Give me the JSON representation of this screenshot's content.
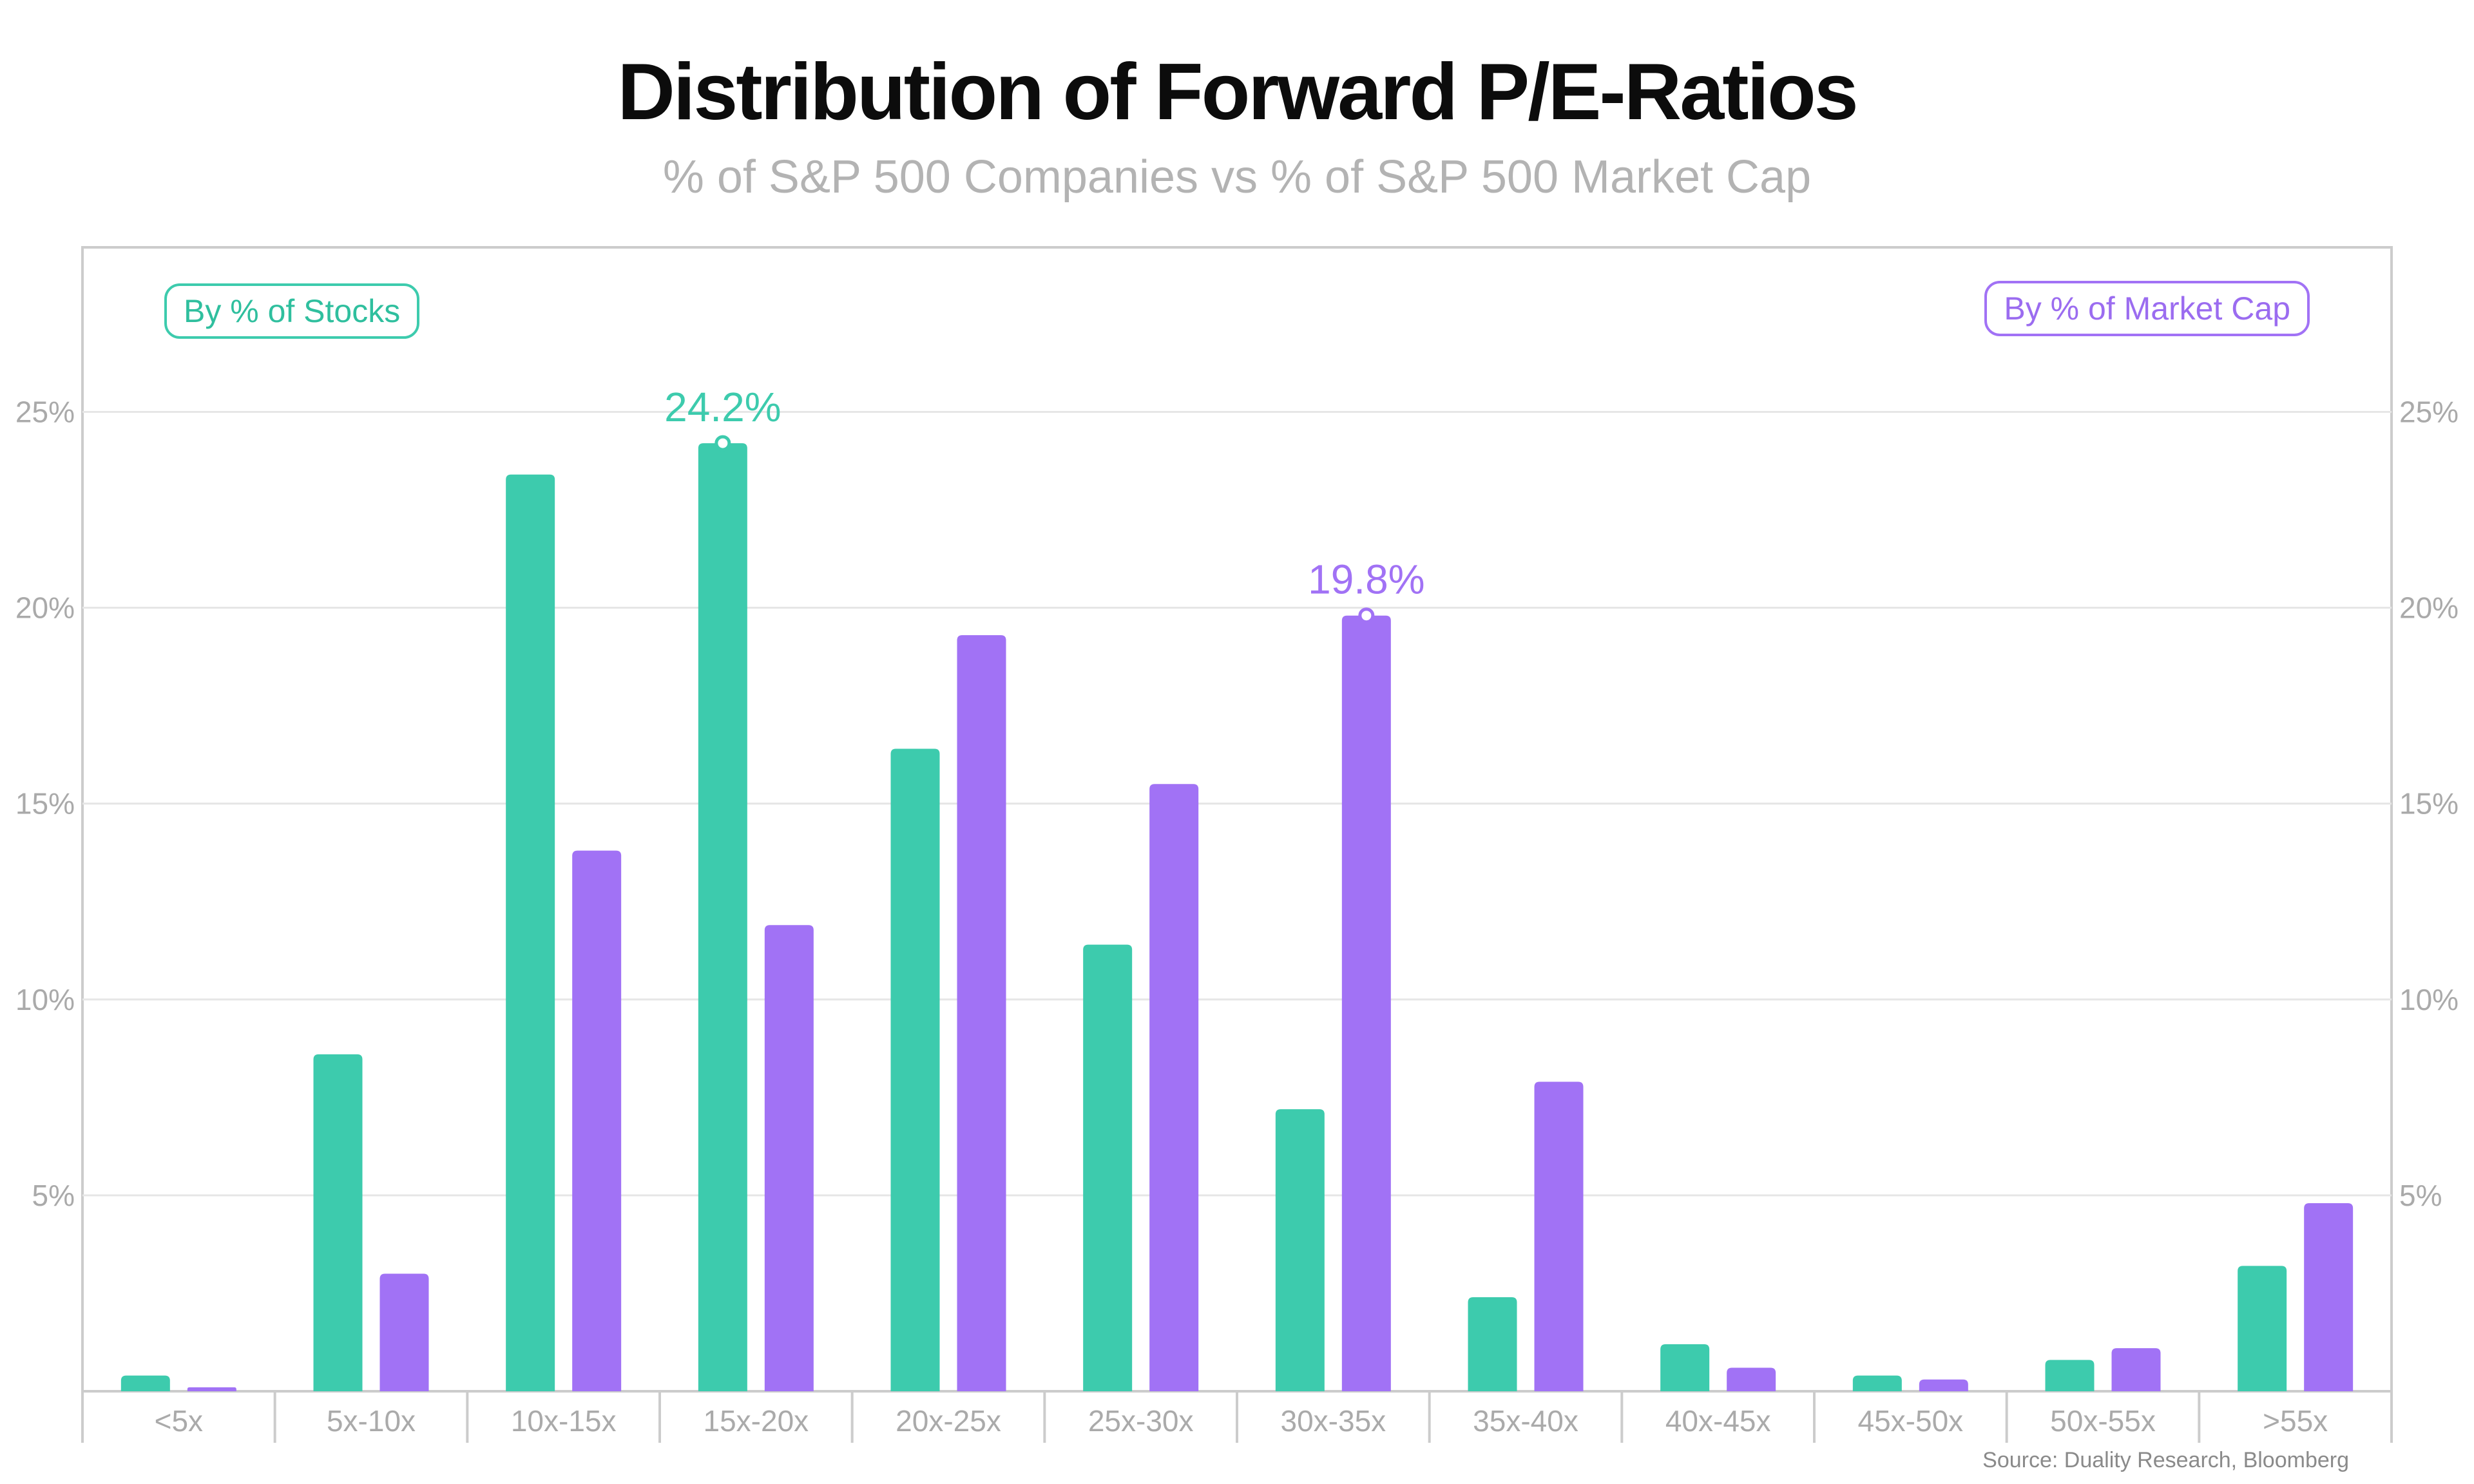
{
  "title": "Distribution of Forward P/E-Ratios",
  "subtitle": "% of S&P 500 Companies vs % of S&P 500 Market Cap",
  "source": "Source: Duality Research, Bloomberg",
  "legend": {
    "stocks": "By % of Stocks",
    "market_cap": "By % of Market Cap"
  },
  "colors": {
    "stocks": "#3dcbad",
    "market_cap": "#a172f5",
    "grid": "#e6e6e6",
    "axis": "#cccccc",
    "tick_text": "#aaaaaa"
  },
  "chart_data": {
    "type": "bar",
    "title": "Distribution of Forward P/E-Ratios",
    "subtitle": "% of S&P 500 Companies vs % of S&P 500 Market Cap",
    "categories": [
      "<5x",
      "5x-10x",
      "10x-15x",
      "15x-20x",
      "20x-25x",
      "25x-30x",
      "30x-35x",
      "35x-40x",
      "40x-45x",
      "45x-50x",
      "50x-55x",
      ">55x"
    ],
    "series": [
      {
        "name": "By % of Stocks",
        "values": [
          0.4,
          8.6,
          23.4,
          24.2,
          16.4,
          11.4,
          7.2,
          2.4,
          1.2,
          0.4,
          0.8,
          3.2
        ]
      },
      {
        "name": "By % of Market Cap",
        "values": [
          0.1,
          3.0,
          13.8,
          11.9,
          19.3,
          15.5,
          19.8,
          7.9,
          0.6,
          0.3,
          1.1,
          4.8
        ]
      }
    ],
    "annotations": [
      {
        "series": 0,
        "category": "15x-20x",
        "label": "24.2%"
      },
      {
        "series": 1,
        "category": "30x-35x",
        "label": "19.8%"
      }
    ],
    "yticks": [
      "5%",
      "10%",
      "15%",
      "20%",
      "25%"
    ],
    "ytick_values": [
      5,
      10,
      15,
      20,
      25
    ],
    "ylim": [
      0,
      29.2
    ],
    "grid": true,
    "legend_placement": "top-left and top-right"
  }
}
